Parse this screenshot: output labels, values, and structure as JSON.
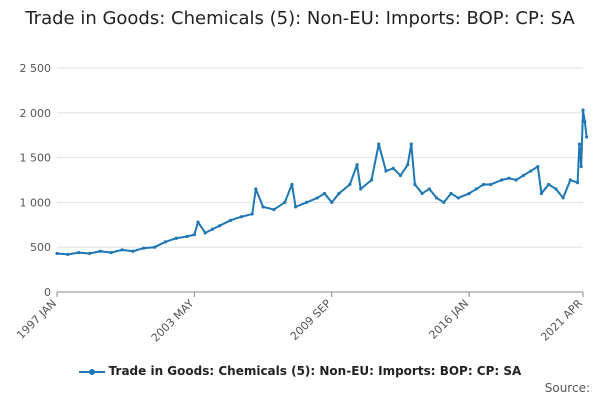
{
  "chart_data": {
    "type": "line",
    "title": "Trade in Goods: Chemicals (5): Non-EU: Imports: BOP: CP: SA",
    "xlabel": "",
    "ylabel": "",
    "ylim": [
      0,
      2500
    ],
    "y_ticks": [
      0,
      500,
      1000,
      1500,
      2000,
      2500
    ],
    "y_tick_labels": [
      "0",
      "500",
      "1 000",
      "1 500",
      "2 000",
      "2 500"
    ],
    "x_tick_labels": [
      "1997 JAN",
      "2003 MAY",
      "2009 SEP",
      "2016 JAN",
      "2021 APR"
    ],
    "x_tick_months": [
      0,
      76,
      152,
      228,
      291
    ],
    "grid": true,
    "legend_position": "bottom",
    "color": "#1f77b4",
    "series": [
      {
        "name": "Trade in Goods: Chemicals (5): Non-EU: Imports: BOP: CP: SA",
        "points": [
          [
            0,
            430
          ],
          [
            6,
            420
          ],
          [
            12,
            440
          ],
          [
            18,
            430
          ],
          [
            24,
            455
          ],
          [
            30,
            440
          ],
          [
            36,
            470
          ],
          [
            42,
            455
          ],
          [
            48,
            490
          ],
          [
            54,
            500
          ],
          [
            60,
            560
          ],
          [
            66,
            600
          ],
          [
            72,
            620
          ],
          [
            76,
            640
          ],
          [
            78,
            780
          ],
          [
            82,
            660
          ],
          [
            86,
            700
          ],
          [
            90,
            740
          ],
          [
            96,
            800
          ],
          [
            102,
            840
          ],
          [
            108,
            870
          ],
          [
            110,
            1150
          ],
          [
            114,
            950
          ],
          [
            120,
            920
          ],
          [
            126,
            1000
          ],
          [
            130,
            1200
          ],
          [
            132,
            950
          ],
          [
            138,
            1000
          ],
          [
            144,
            1050
          ],
          [
            148,
            1100
          ],
          [
            152,
            1000
          ],
          [
            156,
            1100
          ],
          [
            162,
            1200
          ],
          [
            166,
            1420
          ],
          [
            168,
            1150
          ],
          [
            174,
            1250
          ],
          [
            178,
            1650
          ],
          [
            182,
            1350
          ],
          [
            186,
            1380
          ],
          [
            190,
            1300
          ],
          [
            194,
            1420
          ],
          [
            196,
            1650
          ],
          [
            198,
            1200
          ],
          [
            202,
            1100
          ],
          [
            206,
            1150
          ],
          [
            210,
            1050
          ],
          [
            214,
            1000
          ],
          [
            218,
            1100
          ],
          [
            222,
            1050
          ],
          [
            228,
            1100
          ],
          [
            232,
            1150
          ],
          [
            236,
            1200
          ],
          [
            240,
            1200
          ],
          [
            246,
            1250
          ],
          [
            250,
            1270
          ],
          [
            254,
            1250
          ],
          [
            258,
            1300
          ],
          [
            262,
            1350
          ],
          [
            266,
            1400
          ],
          [
            268,
            1100
          ],
          [
            272,
            1200
          ],
          [
            276,
            1150
          ],
          [
            280,
            1050
          ],
          [
            284,
            1250
          ],
          [
            288,
            1220
          ],
          [
            289,
            1650
          ],
          [
            290,
            1400
          ],
          [
            291,
            2030
          ],
          [
            292,
            1900
          ],
          [
            293,
            1730
          ]
        ]
      }
    ]
  },
  "source_label": "Source:"
}
